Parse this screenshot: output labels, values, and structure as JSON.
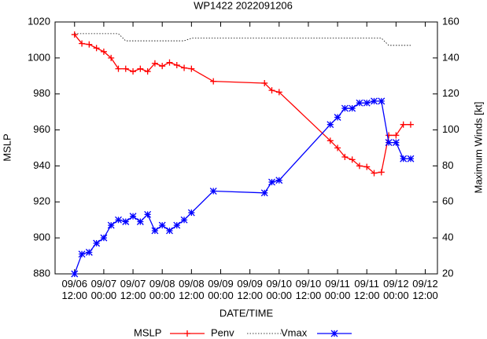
{
  "chart_data": {
    "type": "line",
    "title": "WP1422 2022091206",
    "x_label": "DATE/TIME",
    "y_label": "MSLP",
    "y2_label": "Maximum Winds [kt]",
    "x": [
      "09/06 12:00",
      "09/06 15:00",
      "09/06 18:00",
      "09/06 21:00",
      "09/07 00:00",
      "09/07 03:00",
      "09/07 06:00",
      "09/07 09:00",
      "09/07 12:00",
      "09/07 15:00",
      "09/07 18:00",
      "09/07 21:00",
      "09/08 00:00",
      "09/08 03:00",
      "09/08 06:00",
      "09/08 09:00",
      "09/08 12:00",
      "09/08 21:00",
      "09/09 18:00",
      "09/09 21:00",
      "09/10 00:00",
      "09/10 21:00",
      "09/11 00:00",
      "09/11 03:00",
      "09/11 06:00",
      "09/11 09:00",
      "09/11 12:00",
      "09/11 15:00",
      "09/11 18:00",
      "09/11 21:00",
      "09/12 00:00",
      "09/12 03:00",
      "09/12 06:00"
    ],
    "series": [
      {
        "name": "MSLP",
        "color": "#ff0000",
        "marker": "plus",
        "dashed": false,
        "values": [
          1013,
          1008,
          1007.5,
          1005.5,
          1003.5,
          1000,
          994,
          994,
          992.5,
          994,
          992.5,
          997,
          995.5,
          997.5,
          996,
          994.5,
          994,
          987,
          986,
          982,
          981,
          954,
          950,
          945,
          943.5,
          940,
          939.5,
          936,
          936.5,
          957,
          957,
          963,
          963
        ]
      },
      {
        "name": "Penv",
        "color": "#000000",
        "marker": "none",
        "dashed": true,
        "values": [
          1013.5,
          1013.5,
          1013.5,
          1013.5,
          1013.5,
          1013.5,
          1013.5,
          1009.5,
          1009.5,
          1009.5,
          1009.5,
          1009.5,
          1009.5,
          1009.5,
          1009.5,
          1009.5,
          1011,
          1011,
          1011,
          1011,
          1011,
          1011,
          1011,
          1011,
          1011,
          1011,
          1011,
          1011,
          1011,
          1007,
          1007,
          1007,
          1007
        ]
      },
      {
        "name": "Vmax",
        "color": "#0000ff",
        "marker": "star",
        "dashed": false,
        "axis": "y2",
        "values": [
          20,
          31,
          32,
          37,
          40,
          47,
          50,
          49,
          52,
          49,
          53,
          44,
          47,
          44,
          47,
          50,
          54,
          66,
          65,
          71,
          72,
          103,
          107,
          112,
          112,
          115,
          115,
          116,
          116,
          93,
          93,
          84,
          84
        ]
      }
    ],
    "xlim": [
      "09/06 04:00",
      "09/12 17:00"
    ],
    "xticks": [
      "09/06 12:00",
      "09/07 00:00",
      "09/07 12:00",
      "09/08 00:00",
      "09/08 12:00",
      "09/09 00:00",
      "09/09 12:00",
      "09/10 00:00",
      "09/10 12:00",
      "09/11 00:00",
      "09/11 12:00",
      "09/12 00:00",
      "09/12 12:00"
    ],
    "ylim": [
      880,
      1020
    ],
    "yticks": [
      880,
      900,
      920,
      940,
      960,
      980,
      1000,
      1020
    ],
    "y2lim": [
      20,
      160
    ],
    "y2ticks": [
      20,
      40,
      60,
      80,
      100,
      120,
      140,
      160
    ],
    "legend": "bottom"
  }
}
